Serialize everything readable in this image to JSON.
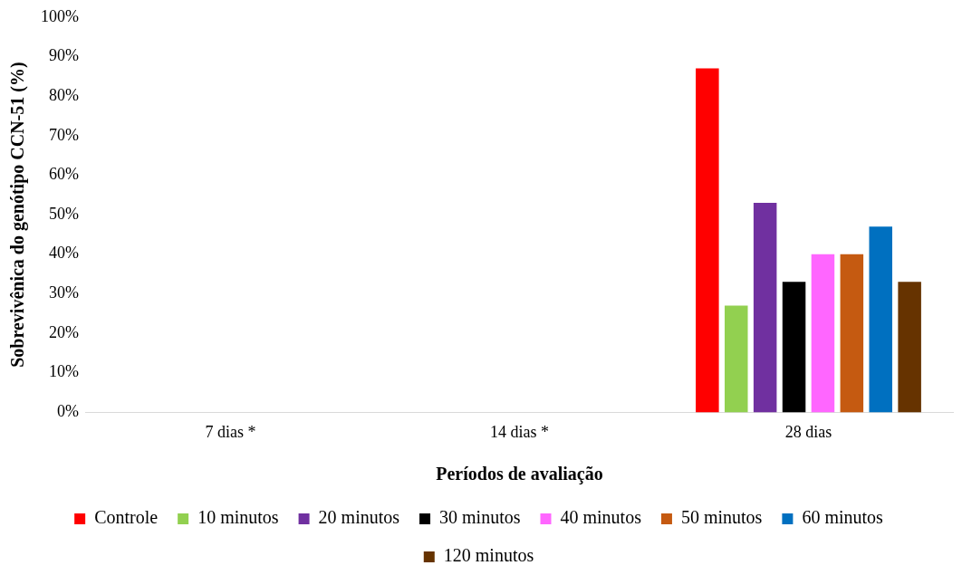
{
  "chart_data": {
    "type": "bar",
    "xlabel": "Períodos de avaliação",
    "ylabel": "Sobrevivênica do genótipo CCN-51 (%)",
    "categories": [
      "7 dias *",
      "14 dias *",
      "28 dias"
    ],
    "series": [
      {
        "name": "Controle",
        "color": "#ff0000",
        "values": [
          0,
          0,
          87
        ]
      },
      {
        "name": "10 minutos",
        "color": "#92d050",
        "values": [
          0,
          0,
          27
        ]
      },
      {
        "name": "20 minutos",
        "color": "#7030a0",
        "values": [
          0,
          0,
          53
        ]
      },
      {
        "name": "30 minutos",
        "color": "#000000",
        "values": [
          0,
          0,
          33
        ]
      },
      {
        "name": "40 minutos",
        "color": "#ff66ff",
        "values": [
          0,
          0,
          40
        ]
      },
      {
        "name": "50 minutos",
        "color": "#c55a11",
        "values": [
          0,
          0,
          40
        ]
      },
      {
        "name": "60 minutos",
        "color": "#0070c0",
        "values": [
          0,
          0,
          47
        ]
      },
      {
        "name": "120 minutos",
        "color": "#663300",
        "values": [
          0,
          0,
          33
        ]
      }
    ],
    "ylim": [
      0,
      100
    ],
    "yticks": [
      {
        "value": 0,
        "label": "0%"
      },
      {
        "value": 10,
        "label": "10%"
      },
      {
        "value": 20,
        "label": "20%"
      },
      {
        "value": 30,
        "label": "30%"
      },
      {
        "value": 40,
        "label": "40%"
      },
      {
        "value": 50,
        "label": "50%"
      },
      {
        "value": 60,
        "label": "60%"
      },
      {
        "value": 70,
        "label": "70%"
      },
      {
        "value": 80,
        "label": "80%"
      },
      {
        "value": 90,
        "label": "90%"
      },
      {
        "value": 100,
        "label": "100%"
      }
    ],
    "grid": false,
    "legend": "bottom"
  }
}
